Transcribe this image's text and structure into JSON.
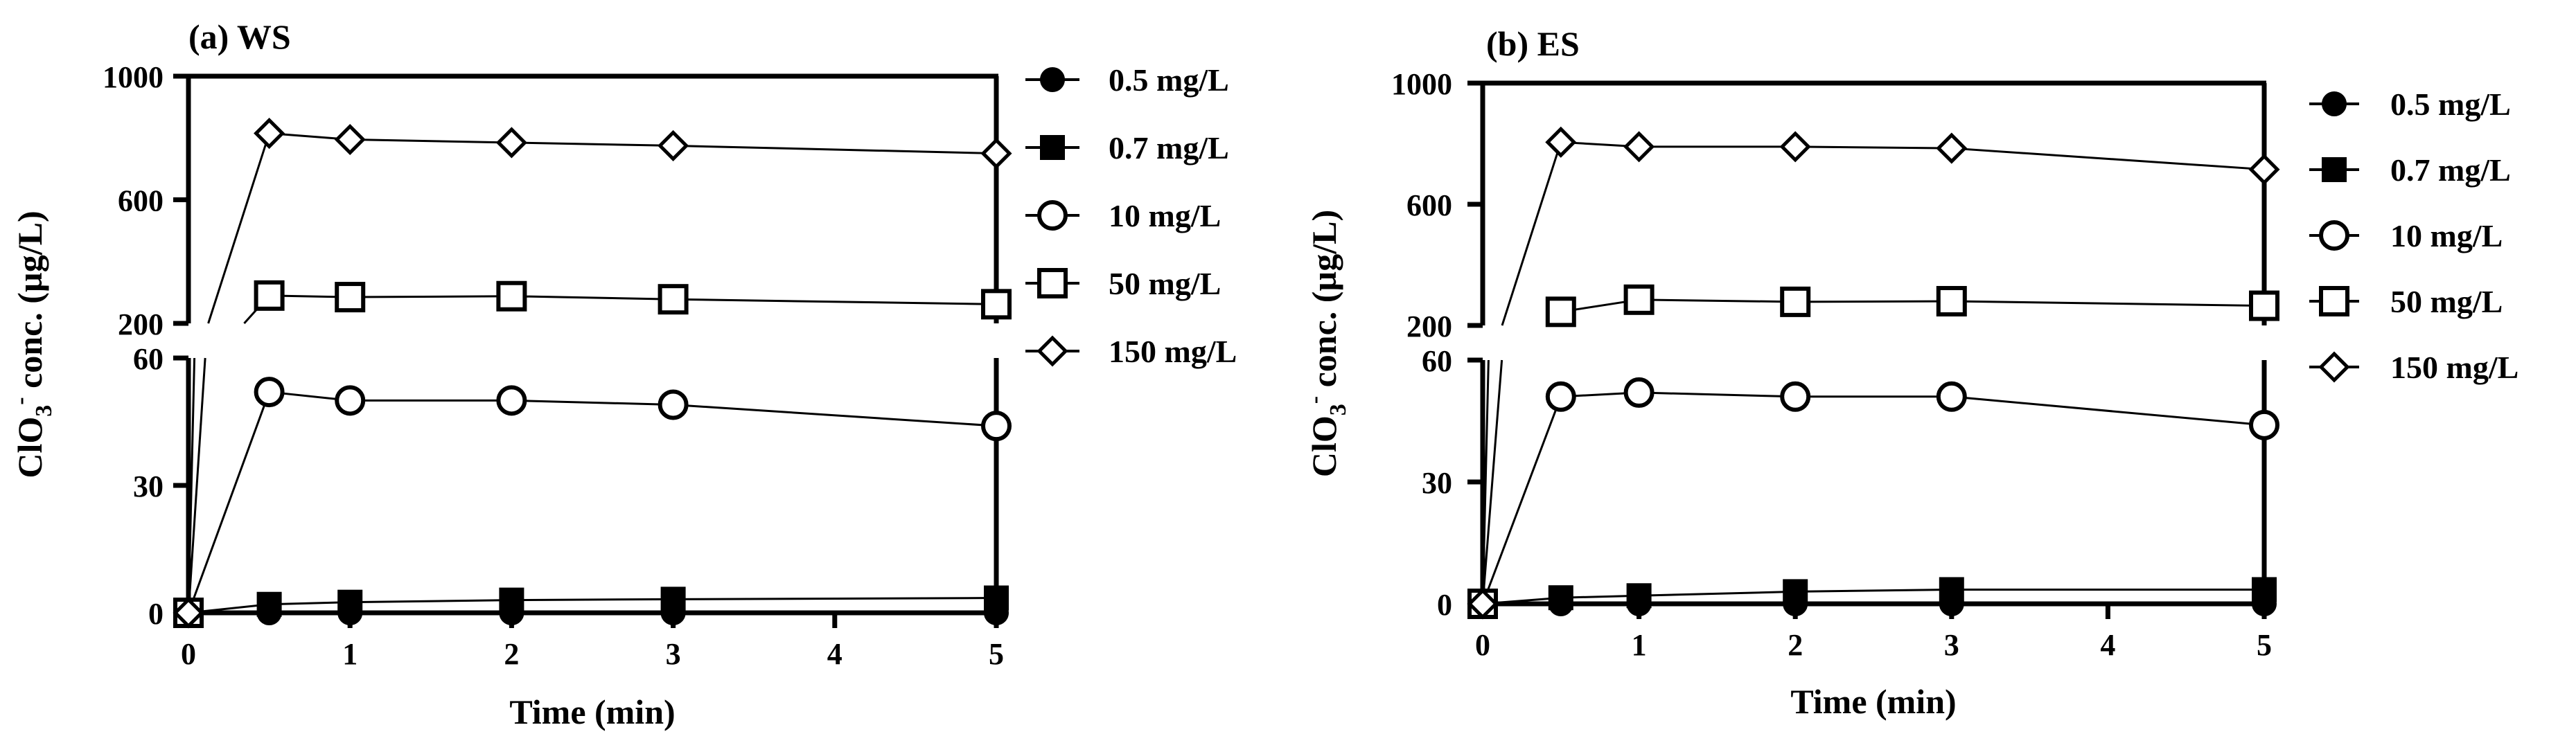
{
  "chart_data": [
    {
      "panel_label": "(a) WS",
      "type": "line",
      "xlabel": "Time (min)",
      "ylabel_main": "ClO",
      "ylabel_sub": "3",
      "ylabel_sup": "-",
      "ylabel_rest": " conc. (µg/L)",
      "x_ticks": [
        0,
        1,
        2,
        3,
        4,
        5
      ],
      "xlim": [
        0,
        5
      ],
      "y_segments": [
        {
          "ylim": [
            0,
            60
          ],
          "ticks": [
            0,
            30,
            60
          ]
        },
        {
          "ylim": [
            200,
            1000
          ],
          "ticks": [
            200,
            600,
            1000
          ]
        }
      ],
      "grid": false,
      "legend_position": "right",
      "series": [
        {
          "name": "0.5 mg/L",
          "marker": "filled-circle",
          "x": [
            0,
            0.5,
            1,
            2,
            3,
            5
          ],
          "y": [
            0,
            0,
            0,
            0,
            0,
            0
          ]
        },
        {
          "name": "0.7 mg/L",
          "marker": "filled-square",
          "x": [
            0,
            0.5,
            1,
            2,
            3,
            5
          ],
          "y": [
            0,
            2,
            2.5,
            3,
            3.2,
            3.5
          ]
        },
        {
          "name": "10 mg/L",
          "marker": "open-circle",
          "x": [
            0,
            0.5,
            1,
            2,
            3,
            5
          ],
          "y": [
            0,
            52,
            50,
            50,
            49,
            44
          ]
        },
        {
          "name": "50 mg/L",
          "marker": "open-square",
          "x": [
            0,
            0.5,
            1,
            2,
            3,
            5
          ],
          "y": [
            0,
            290,
            285,
            288,
            278,
            262
          ]
        },
        {
          "name": "150 mg/L",
          "marker": "open-diamond",
          "x": [
            0,
            0.5,
            1,
            2,
            3,
            5
          ],
          "y": [
            0,
            815,
            795,
            785,
            775,
            750
          ]
        }
      ]
    },
    {
      "panel_label": "(b) ES",
      "type": "line",
      "xlabel": "Time (min)",
      "ylabel_main": "ClO",
      "ylabel_sub": "3",
      "ylabel_sup": "-",
      "ylabel_rest": " conc. (µg/L)",
      "x_ticks": [
        0,
        1,
        2,
        3,
        4,
        5
      ],
      "xlim": [
        0,
        5
      ],
      "y_segments": [
        {
          "ylim": [
            0,
            60
          ],
          "ticks": [
            0,
            30,
            60
          ]
        },
        {
          "ylim": [
            200,
            1000
          ],
          "ticks": [
            200,
            600,
            1000
          ]
        }
      ],
      "grid": false,
      "legend_position": "right",
      "series": [
        {
          "name": "0.5 mg/L",
          "marker": "filled-circle",
          "x": [
            0,
            0.5,
            1,
            2,
            3,
            5
          ],
          "y": [
            0,
            0,
            0,
            0,
            0,
            0
          ]
        },
        {
          "name": "0.7 mg/L",
          "marker": "filled-square",
          "x": [
            0,
            0.5,
            1,
            2,
            3,
            5
          ],
          "y": [
            0,
            1.5,
            2,
            3,
            3.5,
            3.5
          ]
        },
        {
          "name": "10 mg/L",
          "marker": "open-circle",
          "x": [
            0,
            0.5,
            1,
            2,
            3,
            5
          ],
          "y": [
            0,
            51,
            52,
            51,
            51,
            44
          ]
        },
        {
          "name": "50 mg/L",
          "marker": "open-square",
          "x": [
            0,
            0.5,
            1,
            2,
            3,
            5
          ],
          "y": [
            0,
            245,
            285,
            278,
            280,
            265
          ]
        },
        {
          "name": "150 mg/L",
          "marker": "open-diamond",
          "x": [
            0,
            0.5,
            1,
            2,
            3,
            5
          ],
          "y": [
            0,
            805,
            790,
            790,
            785,
            715
          ]
        }
      ]
    }
  ]
}
